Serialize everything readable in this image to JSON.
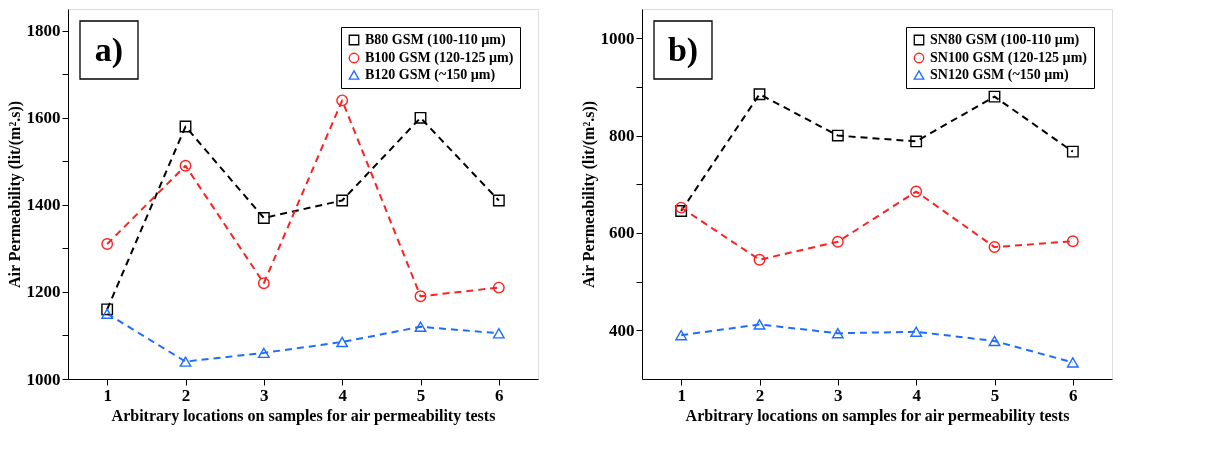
{
  "chart_data": [
    {
      "type": "line",
      "xlabel": "Arbitrary locations on samples for air permeability tests",
      "ylabel": "Air Permeability (lit/(m².s))",
      "annotations": [
        "a)"
      ],
      "x": [
        1,
        2,
        3,
        4,
        5,
        6
      ],
      "xlim": [
        0.5,
        6.5
      ],
      "xticks": [
        1,
        2,
        3,
        4,
        5,
        6
      ],
      "ylim": [
        1000,
        1850
      ],
      "yticks": [
        1000,
        {
          "value": 1100,
          "label": null
        },
        1200,
        {
          "value": 1300,
          "label": null
        },
        1400,
        {
          "value": 1500,
          "label": null
        },
        1600,
        {
          "value": 1700,
          "label": null
        },
        1800
      ],
      "grid": false,
      "legend": "top right",
      "line_style": "dashed",
      "series": [
        {
          "name": "B80 GSM (100-110 µm)",
          "color": "#000000",
          "marker": "square",
          "values": [
            1160,
            1580,
            1370,
            1410,
            1600,
            1410
          ]
        },
        {
          "name": "B100 GSM (120-125 µm)",
          "color": "#ff2020",
          "marker": "circle",
          "values": [
            1310,
            1490,
            1220,
            1640,
            1190,
            1210
          ]
        },
        {
          "name": "B120 GSM (~150 µm)",
          "color": "#1e6cff",
          "marker": "triangle",
          "values": [
            1150,
            1040,
            1060,
            1085,
            1120,
            1105
          ]
        }
      ]
    },
    {
      "type": "line",
      "xlabel": "Arbitrary locations on samples for air permeability tests",
      "ylabel": "Air Permeability (lit/(m².s))",
      "annotations": [
        "b)"
      ],
      "x": [
        1,
        2,
        3,
        4,
        5,
        6
      ],
      "xlim": [
        0.5,
        6.5
      ],
      "xticks": [
        1,
        2,
        3,
        4,
        5,
        6
      ],
      "ylim": [
        300,
        1060
      ],
      "yticks": [
        400,
        {
          "value": 500,
          "label": null
        },
        600,
        {
          "value": 700,
          "label": null
        },
        800,
        {
          "value": 900,
          "label": null
        },
        1000
      ],
      "grid": false,
      "legend": "top right",
      "line_style": "dashed",
      "series": [
        {
          "name": "SN80 GSM (100-110 µm)",
          "color": "#000000",
          "marker": "square",
          "values": [
            645,
            885,
            800,
            788,
            880,
            767
          ]
        },
        {
          "name": "SN100 GSM (120-125 µm)",
          "color": "#ff2020",
          "marker": "circle",
          "values": [
            652,
            545,
            582,
            685,
            571,
            583
          ]
        },
        {
          "name": "SN120 GSM (~150 µm)",
          "color": "#1e6cff",
          "marker": "triangle",
          "values": [
            390,
            412,
            394,
            397,
            378,
            334
          ]
        }
      ]
    }
  ]
}
